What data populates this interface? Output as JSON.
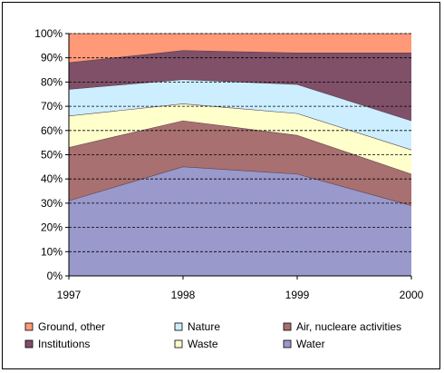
{
  "chart_data": {
    "type": "area",
    "stacked": true,
    "percent": true,
    "x": [
      "1997",
      "1998",
      "1999",
      "2000"
    ],
    "ylim": [
      0,
      100
    ],
    "yticks": [
      "0%",
      "10%",
      "20%",
      "30%",
      "40%",
      "50%",
      "60%",
      "70%",
      "80%",
      "90%",
      "100%"
    ],
    "grid": true,
    "legend_position": "bottom",
    "series": [
      {
        "name": "Water",
        "color": "#9999cc",
        "values": [
          31,
          45,
          42,
          29
        ]
      },
      {
        "name": "Air, nucleare activities",
        "color": "#a87070",
        "values": [
          22,
          19,
          16,
          13
        ]
      },
      {
        "name": "Waste",
        "color": "#ffffcc",
        "values": [
          13,
          7,
          9,
          10
        ]
      },
      {
        "name": "Nature",
        "color": "#cceeff",
        "values": [
          11,
          10,
          12,
          12
        ]
      },
      {
        "name": "Institutions",
        "color": "#7f5068",
        "values": [
          11,
          12,
          13,
          28
        ]
      },
      {
        "name": "Ground, other",
        "color": "#ff9977",
        "values": [
          12,
          7,
          8,
          8
        ]
      }
    ],
    "legend_order": [
      "Ground, other",
      "Nature",
      "Air, nucleare activities",
      "Institutions",
      "Waste",
      "Water"
    ]
  }
}
